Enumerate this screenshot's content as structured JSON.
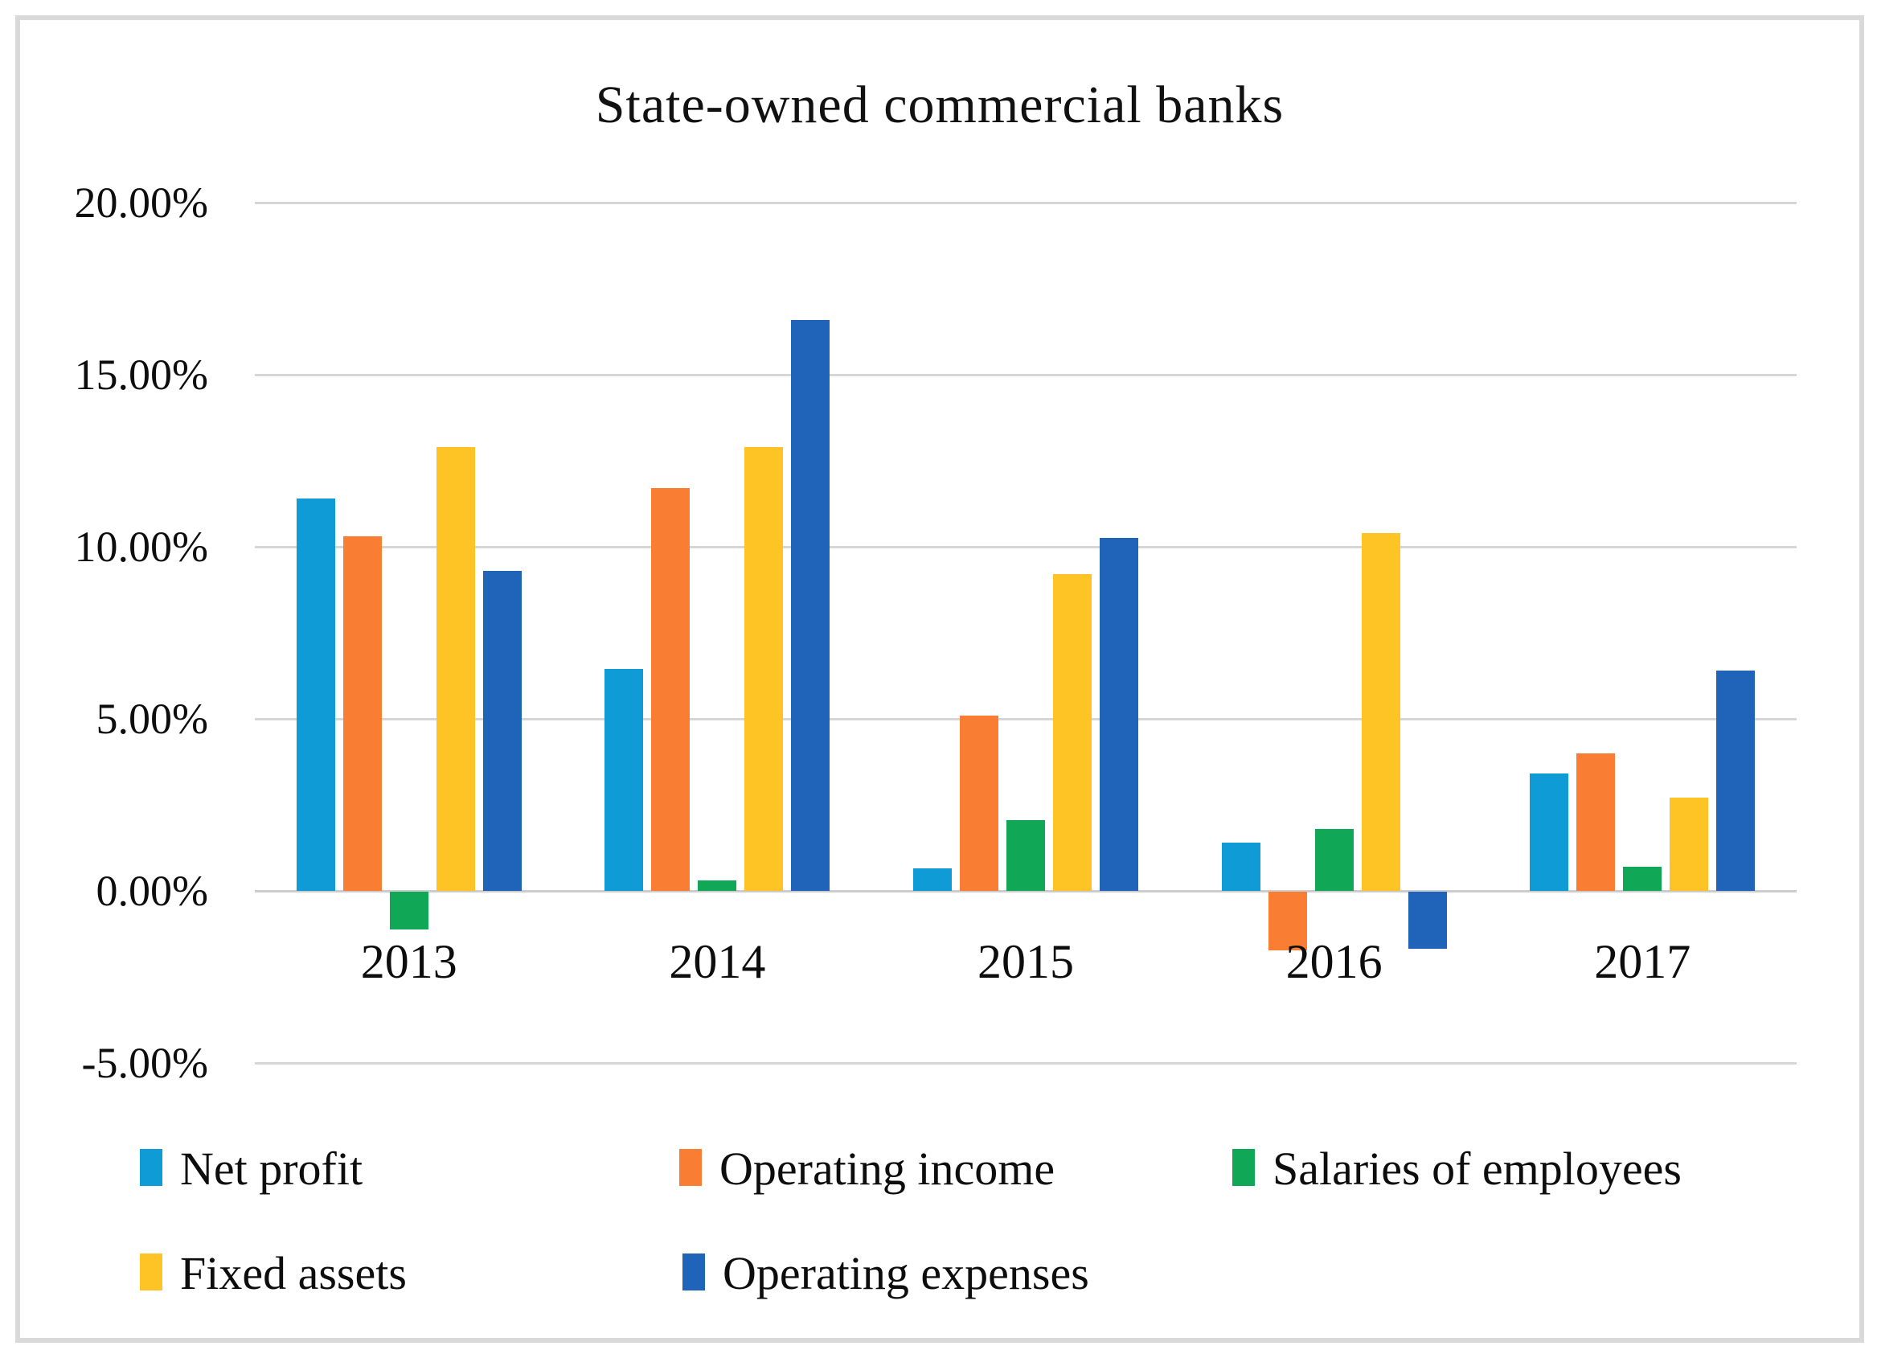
{
  "chart_data": {
    "type": "bar",
    "title": "State-owned commercial banks",
    "categories": [
      "2013",
      "2014",
      "2015",
      "2016",
      "2017"
    ],
    "series": [
      {
        "name": "Net profit",
        "color": "#0e9bd6",
        "values": [
          11.4,
          6.45,
          0.65,
          1.4,
          3.4
        ]
      },
      {
        "name": "Operating income",
        "color": "#f97d32",
        "values": [
          10.3,
          11.7,
          5.1,
          -1.7,
          4.0
        ]
      },
      {
        "name": "Salaries of employees",
        "color": "#10a857",
        "values": [
          -1.1,
          0.3,
          2.05,
          1.8,
          0.7
        ]
      },
      {
        "name": "Fixed assets",
        "color": "#fec325",
        "values": [
          12.9,
          12.9,
          9.2,
          10.4,
          2.7
        ]
      },
      {
        "name": "Operating expenses",
        "color": "#1f64b8",
        "values": [
          9.3,
          16.6,
          10.25,
          -1.65,
          6.4
        ]
      }
    ],
    "xlabel": "",
    "ylabel": "",
    "ylim": [
      -5,
      20
    ],
    "ytick_step": 5,
    "ytick_labels": [
      "20.00%",
      "15.00%",
      "10.00%",
      "5.00%",
      "0.00%",
      "-5.00%"
    ],
    "ytick_values": [
      20,
      15,
      10,
      5,
      0,
      -5
    ],
    "grid": true,
    "legend_position": "bottom",
    "frame_color": "#d9d9d9",
    "gridline_color": "#d6d6d6"
  }
}
